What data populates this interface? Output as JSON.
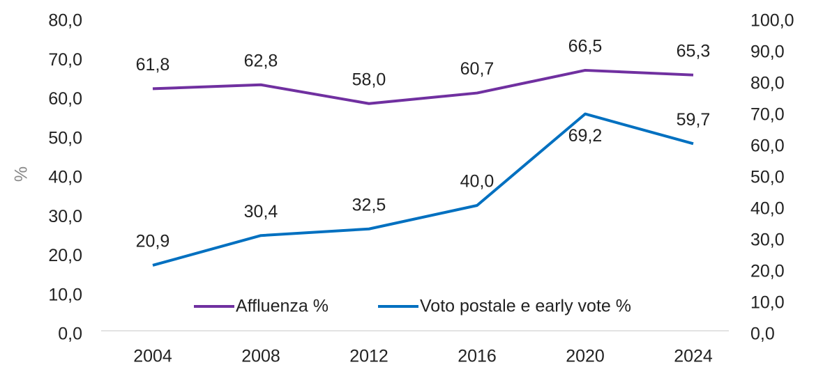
{
  "chart_data": {
    "type": "line",
    "y_label": "%",
    "categories": [
      "2004",
      "2008",
      "2012",
      "2016",
      "2020",
      "2024"
    ],
    "series": [
      {
        "name": "Affluenza %",
        "color": "#7030a0",
        "values": [
          61.8,
          62.8,
          58.0,
          60.7,
          66.5,
          65.3
        ],
        "value_labels": [
          "61,8",
          "62,8",
          "58,0",
          "60,7",
          "66,5",
          "65,3"
        ]
      },
      {
        "name": "Voto postale e early vote %",
        "color": "#0070c0",
        "axis": "y2",
        "values": [
          20.9,
          30.4,
          32.5,
          40.0,
          69.2,
          59.7
        ],
        "value_labels": [
          "20,9",
          "30,4",
          "32,5",
          "40,0",
          "69,2",
          "59,7"
        ]
      }
    ],
    "ylim": [
      0,
      80
    ],
    "yticks": [
      {
        "value": 0,
        "label": "0,0"
      },
      {
        "value": 10,
        "label": "10,0"
      },
      {
        "value": 20,
        "label": "20,0"
      },
      {
        "value": 30,
        "label": "30,0"
      },
      {
        "value": 40,
        "label": "40,0"
      },
      {
        "value": 50,
        "label": "50,0"
      },
      {
        "value": 60,
        "label": "60,0"
      },
      {
        "value": 70,
        "label": "70,0"
      },
      {
        "value": 80,
        "label": "80,0"
      }
    ],
    "y2lim": [
      0,
      100
    ],
    "y2ticks": [
      {
        "value": 0,
        "label": "0,0"
      },
      {
        "value": 10,
        "label": "10,0"
      },
      {
        "value": 20,
        "label": "20,0"
      },
      {
        "value": 30,
        "label": "30,0"
      },
      {
        "value": 40,
        "label": "40,0"
      },
      {
        "value": 50,
        "label": "50,0"
      },
      {
        "value": 60,
        "label": "60,0"
      },
      {
        "value": 70,
        "label": "70,0"
      },
      {
        "value": 80,
        "label": "80,0"
      },
      {
        "value": 90,
        "label": "90,0"
      },
      {
        "value": 100,
        "label": "100,0"
      }
    ],
    "legend": "bottom"
  }
}
